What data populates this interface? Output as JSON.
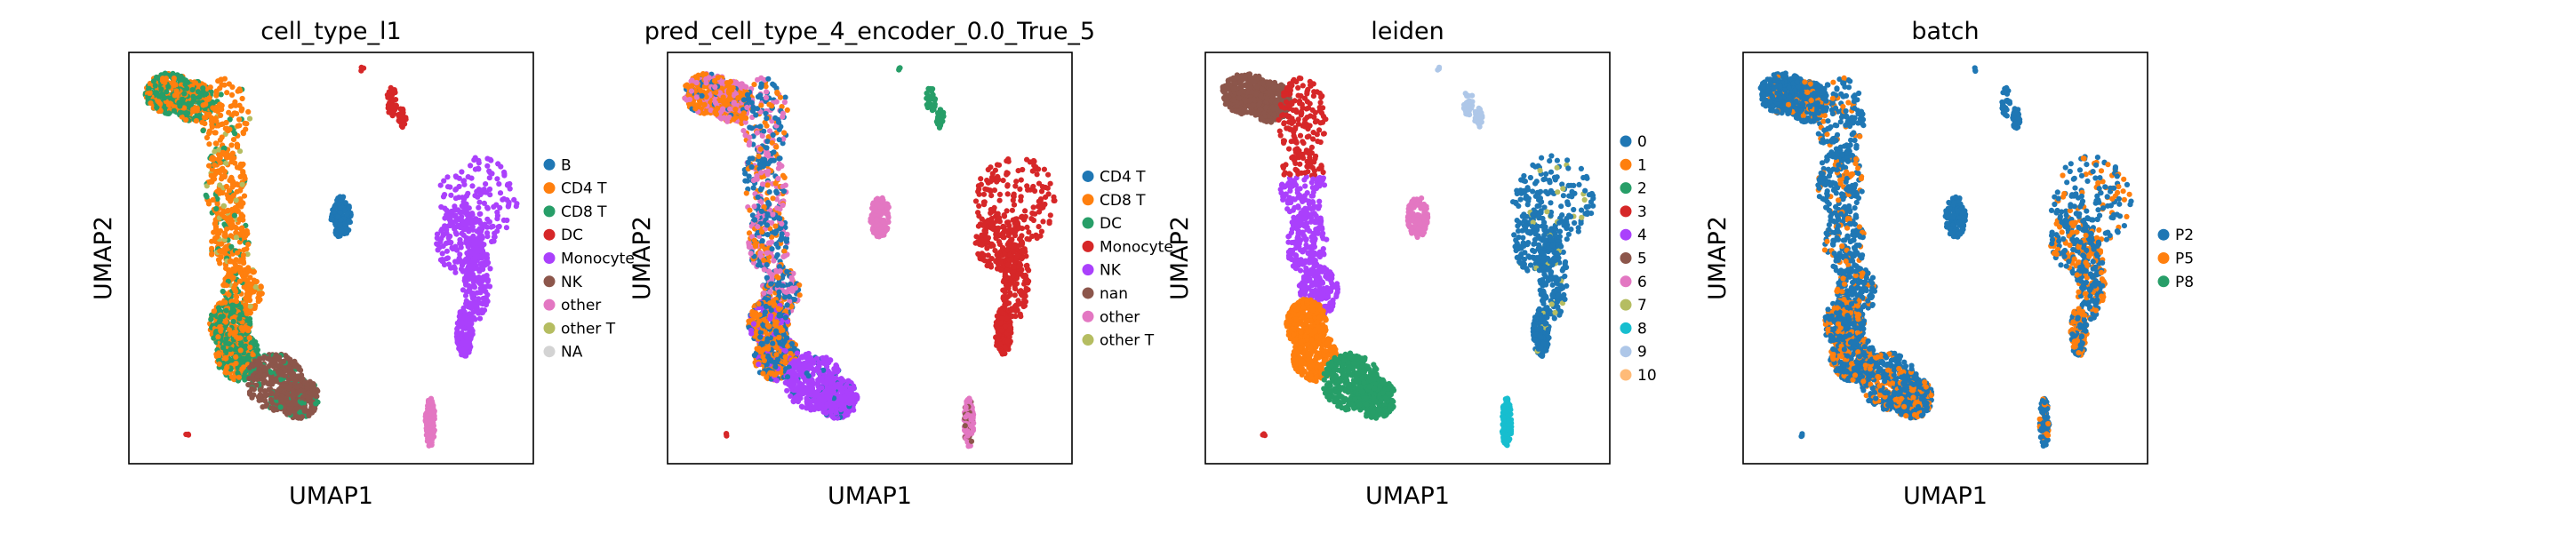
{
  "chart_data": [
    {
      "type": "scatter",
      "title": "cell_type_l1",
      "xlabel": "UMAP1",
      "ylabel": "UMAP2",
      "legend_position": "right",
      "series": [
        {
          "name": "B",
          "color": "#1f77b4"
        },
        {
          "name": "CD4 T",
          "color": "#ff7f0e"
        },
        {
          "name": "CD8 T",
          "color": "#279e68"
        },
        {
          "name": "DC",
          "color": "#d62728"
        },
        {
          "name": "Monocyte",
          "color": "#aa40fc"
        },
        {
          "name": "NK",
          "color": "#8c564b"
        },
        {
          "name": "other",
          "color": "#e377c2"
        },
        {
          "name": "other T",
          "color": "#b5bd61"
        },
        {
          "name": "NA",
          "color": "#d3d3d3"
        }
      ]
    },
    {
      "type": "scatter",
      "title": "pred_cell_type_4_encoder_0.0_True_5",
      "xlabel": "UMAP1",
      "ylabel": "UMAP2",
      "legend_position": "right",
      "series": [
        {
          "name": "CD4 T",
          "color": "#1f77b4"
        },
        {
          "name": "CD8 T",
          "color": "#ff7f0e"
        },
        {
          "name": "DC",
          "color": "#279e68"
        },
        {
          "name": "Monocyte",
          "color": "#d62728"
        },
        {
          "name": "NK",
          "color": "#aa40fc"
        },
        {
          "name": "nan",
          "color": "#8c564b"
        },
        {
          "name": "other",
          "color": "#e377c2"
        },
        {
          "name": "other T",
          "color": "#b5bd61"
        }
      ]
    },
    {
      "type": "scatter",
      "title": "leiden",
      "xlabel": "UMAP1",
      "ylabel": "UMAP2",
      "legend_position": "right",
      "series": [
        {
          "name": "0",
          "color": "#1f77b4"
        },
        {
          "name": "1",
          "color": "#ff7f0e"
        },
        {
          "name": "2",
          "color": "#279e68"
        },
        {
          "name": "3",
          "color": "#d62728"
        },
        {
          "name": "4",
          "color": "#aa40fc"
        },
        {
          "name": "5",
          "color": "#8c564b"
        },
        {
          "name": "6",
          "color": "#e377c2"
        },
        {
          "name": "7",
          "color": "#b5bd61"
        },
        {
          "name": "8",
          "color": "#17becf"
        },
        {
          "name": "9",
          "color": "#aec7e8"
        },
        {
          "name": "10",
          "color": "#ffbb78"
        }
      ]
    },
    {
      "type": "scatter",
      "title": "batch",
      "xlabel": "UMAP1",
      "ylabel": "UMAP2",
      "legend_position": "right",
      "series": [
        {
          "name": "P2",
          "color": "#1f77b4"
        },
        {
          "name": "P5",
          "color": "#ff7f0e"
        },
        {
          "name": "P8",
          "color": "#279e68"
        }
      ]
    }
  ]
}
